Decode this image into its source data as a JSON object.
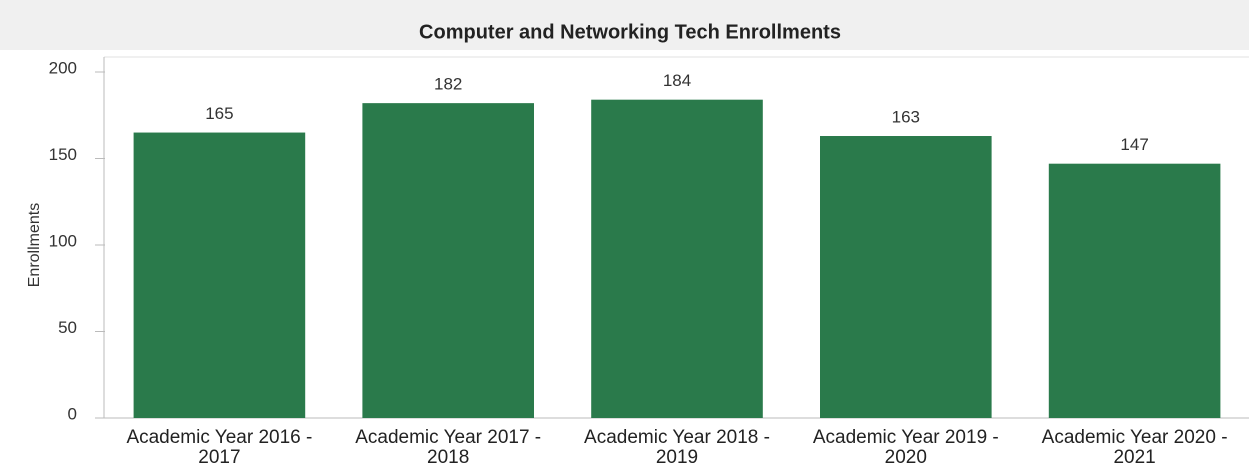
{
  "chart_data": {
    "type": "bar",
    "title": "Computer and Networking Tech Enrollments",
    "y_label": "Enrollments",
    "categories": [
      "Academic Year 2016 - 2017",
      "Academic Year 2017 - 2018",
      "Academic Year 2018 - 2019",
      "Academic Year 2019 - 2020",
      "Academic Year 2020 - 2021"
    ],
    "values": [
      165,
      182,
      184,
      163,
      147
    ],
    "color": "#2a7a4b",
    "ylim": [
      0,
      200
    ],
    "yticks": [
      0,
      50,
      100,
      150,
      200
    ],
    "grid": false
  }
}
